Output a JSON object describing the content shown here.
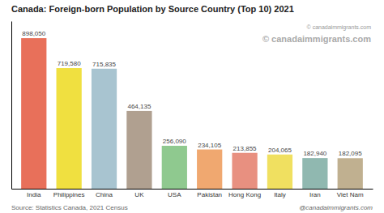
{
  "chart_data": {
    "type": "bar",
    "title": "Canada: Foreign-born Population by Source Country (Top 10) 2021",
    "categories": [
      "India",
      "Philippines",
      "China",
      "UK",
      "USA",
      "Pakistan",
      "Hong Kong",
      "Italy",
      "Iran",
      "Viet Nam"
    ],
    "values": [
      898050,
      719580,
      715835,
      464135,
      256090,
      234105,
      213855,
      204065,
      182940,
      182095
    ],
    "value_labels": [
      "898,050",
      "719,580",
      "715,835",
      "464,135",
      "256,090",
      "234,105",
      "213,855",
      "204,065",
      "182,940",
      "182,095"
    ],
    "colors": [
      "#E8705A",
      "#F0E040",
      "#A8C4D0",
      "#B0A090",
      "#8FC98F",
      "#F0A870",
      "#E89080",
      "#F0E060",
      "#90B8B0",
      "#C0B090"
    ],
    "ylim": [
      0,
      1000000
    ],
    "data_labels": true,
    "tick_labels": "x",
    "grid": false,
    "annotations": [
      "Source: Statistics Canada, 2021 Census",
      "@canadaimmigrants.com",
      "© canadaimmigrants.com",
      "© canadaimmigrants.com"
    ]
  }
}
